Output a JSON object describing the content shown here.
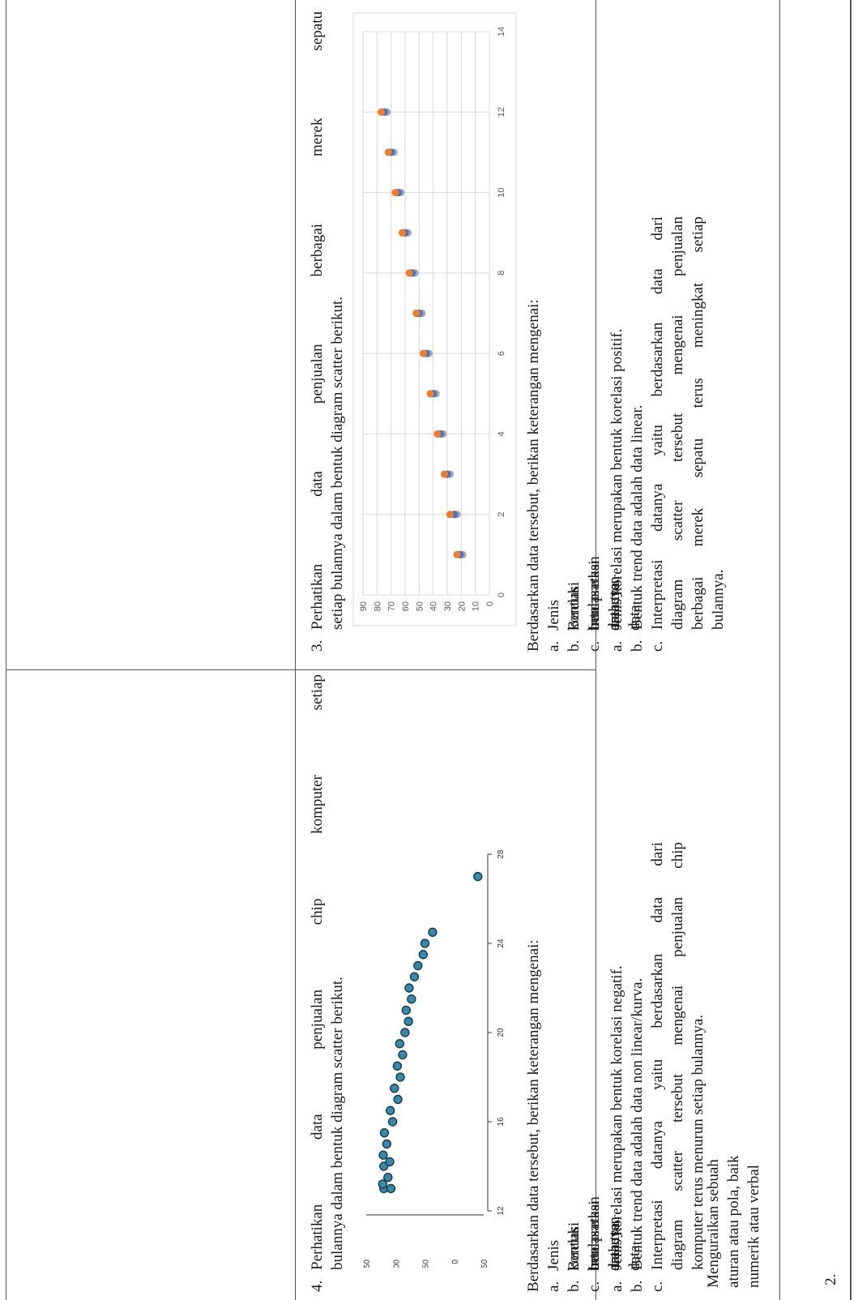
{
  "row_number": "2.",
  "indicator": {
    "lines": [
      "Menguraikan sebuah",
      "aturan atau pola, baik",
      "numerik atau verbal"
    ]
  },
  "q3": {
    "number": "3.",
    "lines": [
      "Perhatikan data penjualan berbagai merek sepatu",
      "setiap bulannya dalam bentuk diagram scatter berikut."
    ],
    "instruction": "Berdasarkan data tersebut, berikan keterangan mengenai:",
    "sub_items": [
      {
        "marker": "a.",
        "text": "Jenis korelasi berdasarkan arah tren data."
      },
      {
        "marker": "b.",
        "text": "Bentuk tren datanya."
      },
      {
        "marker": "c.",
        "text": "Interpretasi datanya."
      }
    ]
  },
  "a3": {
    "items": [
      {
        "marker": "a.",
        "lines": [
          "Jenis korelasi merupakan bentuk korelasi positif."
        ]
      },
      {
        "marker": "b.",
        "lines": [
          "Bentuk trend data adalah data linear."
        ]
      },
      {
        "marker": "c.",
        "lines": [
          "Interpretasi datanya yaitu berdasarkan data dari",
          "diagram scatter tersebut mengenai penjualan",
          "berbagai merek sepatu terus meningkat setiap",
          "bulannya."
        ]
      }
    ]
  },
  "q4": {
    "number": "4.",
    "lines": [
      "Perhatikan data penjualan chip komputer setiap",
      "bulannya dalam bentuk diagram scatter berikut."
    ],
    "instruction": "Berdasarkan data tersebut, berikan keterangan mengenai:",
    "sub_items": [
      {
        "marker": "a.",
        "text": "Jenis korelasi berdasarkan arah tren data."
      },
      {
        "marker": "b.",
        "text": "Bentuk tren datanya."
      },
      {
        "marker": "c.",
        "text": "Interpretasi datanya."
      }
    ]
  },
  "a4": {
    "items": [
      {
        "marker": "a.",
        "lines": [
          "Jenis korelasi merupakan bentuk korelasi negatif."
        ]
      },
      {
        "marker": "b.",
        "lines": [
          "Bentuk trend data adalah data non linear/kurva."
        ]
      },
      {
        "marker": "c.",
        "lines": [
          "Interpretasi datanya yaitu berdasarkan data dari",
          "diagram scatter tersebut mengenai penjualan chip",
          "komputer terus menurun setiap bulannya."
        ]
      }
    ]
  },
  "chart_data": [
    {
      "type": "scatter",
      "title": "",
      "xlabel": "",
      "ylabel": "",
      "xlim": [
        0,
        14
      ],
      "ylim": [
        0,
        90
      ],
      "x_ticks": [
        "0",
        "2",
        "4",
        "6",
        "8",
        "10",
        "12",
        "14"
      ],
      "y_ticks": [
        "0",
        "10",
        "20",
        "30",
        "40",
        "50",
        "60",
        "70",
        "80",
        "90"
      ],
      "grid": true,
      "colors": [
        "#ED7D31",
        "#4472C4",
        "#A5A5A5"
      ],
      "series": [
        {
          "x": [
            1,
            2,
            3,
            4,
            5,
            6,
            7,
            8,
            9,
            10,
            11,
            12
          ],
          "values": [
            23,
            28,
            32,
            37,
            42,
            47,
            52,
            57,
            62,
            67,
            72,
            77
          ]
        },
        {
          "x": [
            1,
            2,
            3,
            4,
            5,
            6,
            7,
            8,
            9,
            10,
            11,
            12
          ],
          "values": [
            21,
            25,
            30,
            35,
            40,
            45,
            50,
            55,
            60,
            65,
            70,
            75
          ]
        },
        {
          "x": [
            1,
            2,
            3,
            4,
            5,
            6,
            7,
            8,
            9,
            10,
            11,
            12
          ],
          "values": [
            19,
            23,
            28,
            33,
            38,
            43,
            48,
            53,
            58,
            63,
            68,
            73
          ]
        }
      ]
    },
    {
      "type": "scatter",
      "title": "",
      "xlabel": "",
      "ylabel": "",
      "xlim": [
        12,
        28
      ],
      "ylim": [
        -50,
        150
      ],
      "x_ticks": [
        "12",
        "16",
        "20",
        "24",
        "28"
      ],
      "y_ticks": [
        "-50",
        "0",
        "50",
        "100",
        "150"
      ],
      "grid": false,
      "colors": [
        "#3A87A8",
        "#173C4D"
      ],
      "series": [
        {
          "x": [
            13,
            13,
            13.2,
            13.5,
            14,
            14.2,
            14.5,
            15,
            15.5,
            16,
            16.5,
            17,
            17.5,
            18,
            18.5,
            19,
            19.5,
            20,
            20.5,
            21,
            21.5,
            22,
            22.5,
            23,
            23.5,
            24,
            24.5,
            27
          ],
          "values": [
            120,
            108,
            122,
            113,
            120,
            110,
            121,
            115,
            119,
            105,
            109,
            96,
            102,
            92,
            97,
            88,
            93,
            84,
            78,
            82,
            73,
            77,
            68,
            62,
            53,
            50,
            37,
            -40
          ]
        }
      ]
    }
  ]
}
